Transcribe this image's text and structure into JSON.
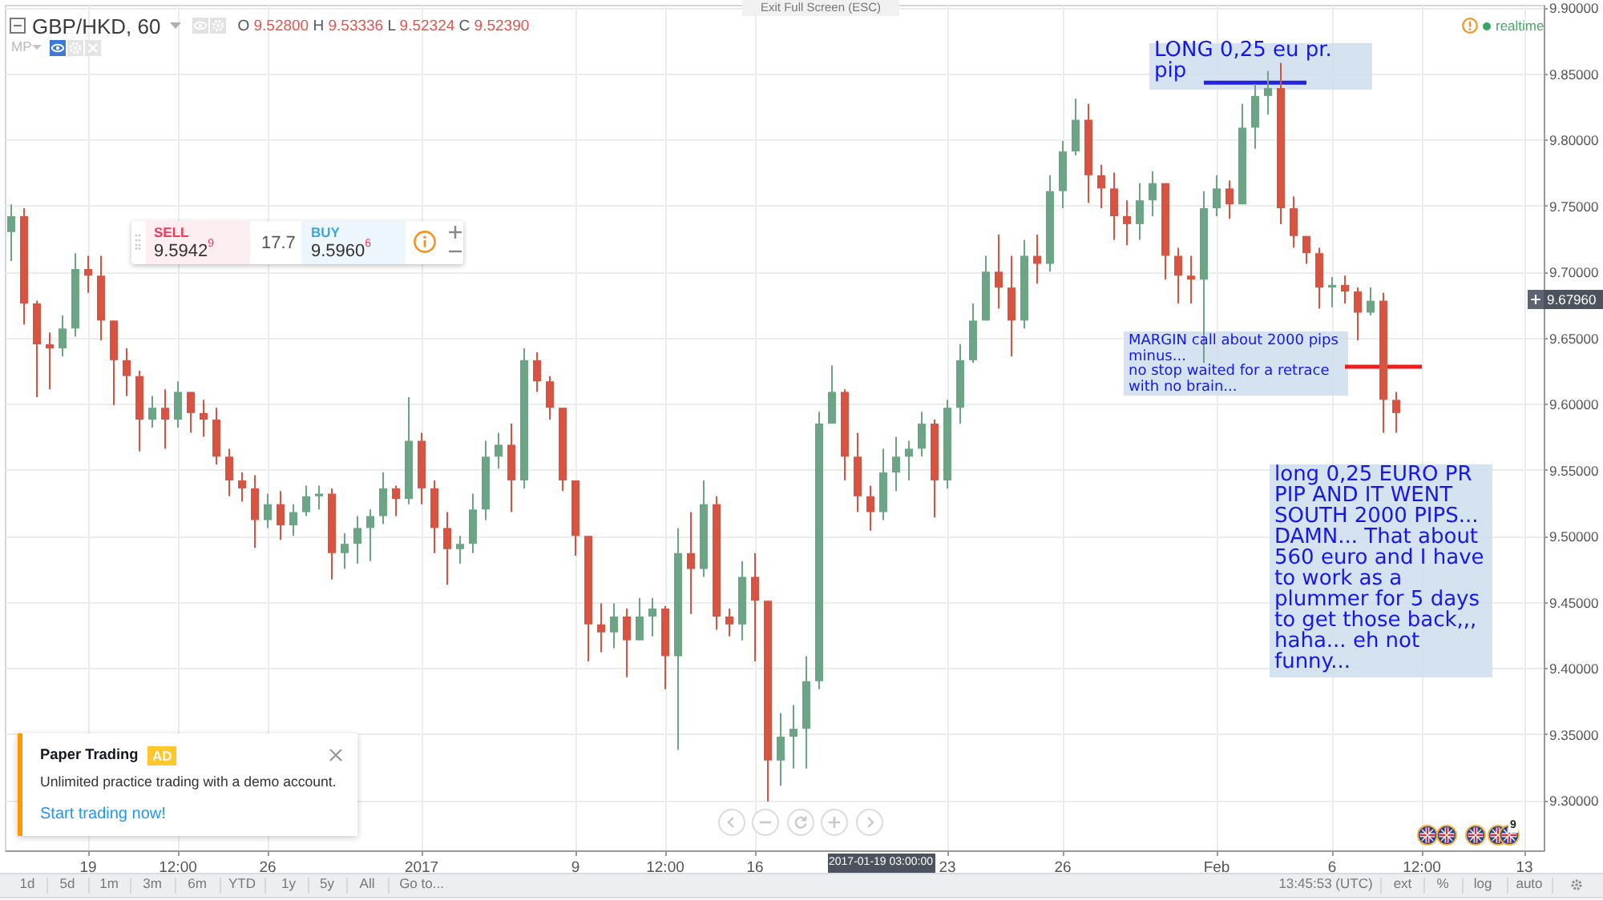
{
  "chart_data": {
    "type": "candlestick",
    "title": "GBP/HKD, 60",
    "subtitle": "O 9.52800 H 9.53336 L 9.52324 C 9.52390",
    "categories": [
      null,
      null,
      null,
      null,
      null,
      null,
      "19",
      null,
      null,
      null,
      null,
      null,
      null,
      "12:00",
      null,
      null,
      null,
      null,
      null,
      null,
      "26",
      null,
      null,
      null,
      null,
      null,
      null,
      null,
      null,
      null,
      null,
      null,
      "2017",
      null,
      null,
      null,
      null,
      null,
      null,
      null,
      null,
      null,
      null,
      null,
      "9",
      null,
      null,
      null,
      null,
      null,
      null,
      "12:00",
      null,
      null,
      null,
      null,
      null,
      null,
      "16",
      null,
      null,
      null,
      null,
      null,
      null,
      null,
      null,
      null,
      null,
      null,
      null,
      null,
      null,
      "23",
      null,
      null,
      null,
      null,
      null,
      null,
      null,
      null,
      "26",
      null,
      null,
      null,
      null,
      null,
      null,
      null,
      null,
      null,
      null,
      null,
      "Feb",
      null,
      null,
      null,
      null,
      null,
      null,
      null,
      null,
      "6",
      null,
      null,
      null,
      null,
      null,
      null,
      "12:00",
      null,
      null,
      null,
      null,
      null,
      null,
      null,
      "13",
      null
    ],
    "ohlc": [
      [
        9.73,
        9.751,
        9.708,
        9.742
      ],
      [
        9.742,
        9.748,
        9.66,
        9.676
      ],
      [
        9.676,
        9.678,
        9.605,
        9.645
      ],
      [
        9.645,
        9.654,
        9.611,
        9.642
      ],
      [
        9.642,
        9.667,
        9.636,
        9.657
      ],
      [
        9.657,
        9.714,
        9.651,
        9.702
      ],
      [
        9.702,
        9.712,
        9.684,
        9.697
      ],
      [
        9.697,
        9.712,
        9.648,
        9.663
      ],
      [
        9.663,
        9.663,
        9.599,
        9.633
      ],
      [
        9.633,
        9.642,
        9.606,
        9.621
      ],
      [
        9.621,
        9.625,
        9.564,
        9.588
      ],
      [
        9.588,
        9.606,
        9.582,
        9.597
      ],
      [
        9.597,
        9.611,
        9.566,
        9.588
      ],
      [
        9.588,
        9.617,
        9.582,
        9.609
      ],
      [
        9.609,
        9.609,
        9.578,
        9.593
      ],
      [
        9.593,
        9.603,
        9.575,
        9.588
      ],
      [
        9.588,
        9.597,
        9.554,
        9.56
      ],
      [
        9.56,
        9.566,
        9.53,
        9.542
      ],
      [
        9.542,
        9.548,
        9.526,
        9.536
      ],
      [
        9.536,
        9.546,
        9.491,
        9.512
      ],
      [
        9.512,
        9.532,
        9.506,
        9.524
      ],
      [
        9.524,
        9.534,
        9.497,
        9.508
      ],
      [
        9.508,
        9.524,
        9.5,
        9.518
      ],
      [
        9.518,
        9.538,
        9.515,
        9.53
      ],
      [
        9.53,
        9.538,
        9.52,
        9.532
      ],
      [
        9.532,
        9.536,
        9.467,
        9.487
      ],
      [
        9.487,
        9.502,
        9.475,
        9.494
      ],
      [
        9.494,
        9.515,
        9.479,
        9.506
      ],
      [
        9.506,
        9.52,
        9.481,
        9.515
      ],
      [
        9.515,
        9.548,
        9.509,
        9.536
      ],
      [
        9.536,
        9.538,
        9.515,
        9.528
      ],
      [
        9.528,
        9.605,
        9.524,
        9.572
      ],
      [
        9.572,
        9.578,
        9.524,
        9.536
      ],
      [
        9.536,
        9.542,
        9.487,
        9.506
      ],
      [
        9.506,
        9.518,
        9.463,
        9.49
      ],
      [
        9.49,
        9.5,
        9.479,
        9.494
      ],
      [
        9.494,
        9.532,
        9.487,
        9.52
      ],
      [
        9.52,
        9.572,
        9.512,
        9.56
      ],
      [
        9.56,
        9.578,
        9.551,
        9.569
      ],
      [
        9.569,
        9.585,
        9.518,
        9.542
      ],
      [
        9.542,
        9.642,
        9.536,
        9.633
      ],
      [
        9.633,
        9.639,
        9.609,
        9.617
      ],
      [
        9.617,
        9.621,
        9.588,
        9.597
      ],
      [
        9.597,
        9.597,
        9.534,
        9.542
      ],
      [
        9.542,
        9.542,
        9.485,
        9.5
      ],
      [
        9.5,
        9.5,
        9.405,
        9.433
      ],
      [
        9.433,
        9.449,
        9.412,
        9.427
      ],
      [
        9.427,
        9.449,
        9.415,
        9.439
      ],
      [
        9.439,
        9.445,
        9.393,
        9.421
      ],
      [
        9.421,
        9.453,
        9.421,
        9.439
      ],
      [
        9.439,
        9.453,
        9.424,
        9.445
      ],
      [
        9.445,
        9.447,
        9.384,
        9.409
      ],
      [
        9.409,
        9.506,
        9.338,
        9.487
      ],
      [
        9.487,
        9.518,
        9.441,
        9.475
      ],
      [
        9.475,
        9.542,
        9.469,
        9.524
      ],
      [
        9.524,
        9.53,
        9.429,
        9.439
      ],
      [
        9.439,
        9.445,
        9.424,
        9.433
      ],
      [
        9.433,
        9.481,
        9.421,
        9.469
      ],
      [
        9.469,
        9.487,
        9.405,
        9.451
      ],
      [
        9.451,
        9.451,
        9.299,
        9.33
      ],
      [
        9.33,
        9.366,
        9.311,
        9.348
      ],
      [
        9.348,
        9.372,
        9.324,
        9.354
      ],
      [
        9.354,
        9.409,
        9.324,
        9.39
      ],
      [
        9.39,
        9.594,
        9.384,
        9.585
      ],
      [
        9.585,
        9.629,
        9.585,
        9.609
      ],
      [
        9.609,
        9.611,
        9.542,
        9.56
      ],
      [
        9.56,
        9.578,
        9.518,
        9.53
      ],
      [
        9.53,
        9.538,
        9.504,
        9.518
      ],
      [
        9.518,
        9.566,
        9.512,
        9.548
      ],
      [
        9.548,
        9.575,
        9.534,
        9.56
      ],
      [
        9.56,
        9.572,
        9.542,
        9.566
      ],
      [
        9.566,
        9.594,
        9.56,
        9.585
      ],
      [
        9.585,
        9.588,
        9.514,
        9.542
      ],
      [
        9.542,
        9.603,
        9.536,
        9.597
      ],
      [
        9.597,
        9.645,
        9.585,
        9.633
      ],
      [
        9.633,
        9.676,
        9.631,
        9.663
      ],
      [
        9.663,
        9.712,
        9.663,
        9.7
      ],
      [
        9.7,
        9.728,
        9.672,
        9.688
      ],
      [
        9.688,
        9.712,
        9.636,
        9.663
      ],
      [
        9.663,
        9.724,
        9.657,
        9.712
      ],
      [
        9.712,
        9.728,
        9.691,
        9.706
      ],
      [
        9.706,
        9.773,
        9.7,
        9.761
      ],
      [
        9.761,
        9.799,
        9.748,
        9.791
      ],
      [
        9.791,
        9.831,
        9.788,
        9.815
      ],
      [
        9.815,
        9.827,
        9.752,
        9.773
      ],
      [
        9.773,
        9.781,
        9.748,
        9.763
      ],
      [
        9.763,
        9.775,
        9.724,
        9.742
      ],
      [
        9.742,
        9.754,
        9.72,
        9.736
      ],
      [
        9.736,
        9.767,
        9.724,
        9.754
      ],
      [
        9.754,
        9.776,
        9.742,
        9.767
      ],
      [
        9.767,
        9.767,
        9.694,
        9.712
      ],
      [
        9.712,
        9.718,
        9.676,
        9.697
      ],
      [
        9.697,
        9.712,
        9.676,
        9.694
      ],
      [
        9.694,
        9.761,
        9.631,
        9.748
      ],
      [
        9.748,
        9.773,
        9.742,
        9.763
      ],
      [
        9.763,
        9.769,
        9.74,
        9.751
      ],
      [
        9.751,
        9.827,
        9.751,
        9.809
      ],
      [
        9.809,
        9.842,
        9.793,
        9.833
      ],
      [
        9.833,
        9.852,
        9.819,
        9.839
      ],
      [
        9.839,
        9.858,
        9.736,
        9.748
      ],
      [
        9.748,
        9.757,
        9.718,
        9.727
      ],
      [
        9.727,
        9.727,
        9.706,
        9.714
      ],
      [
        9.714,
        9.718,
        9.672,
        9.688
      ],
      [
        9.688,
        9.696,
        9.673,
        9.69
      ],
      [
        9.69,
        9.697,
        9.676,
        9.685
      ],
      [
        9.685,
        9.688,
        9.648,
        9.669
      ],
      [
        9.669,
        9.688,
        9.667,
        9.678
      ],
      [
        9.678,
        9.684,
        9.578,
        9.603
      ],
      [
        9.603,
        9.609,
        9.578,
        9.593
      ],
      null,
      null,
      null,
      null,
      null,
      null,
      null,
      null,
      null,
      null,
      null
    ],
    "colors": [
      "#6ba583",
      "#d75442",
      "#d75442",
      "#d75442",
      "#6ba583",
      "#6ba583",
      "#d75442",
      "#d75442",
      "#d75442",
      "#d75442",
      "#d75442",
      "#6ba583",
      "#d75442",
      "#6ba583",
      "#d75442",
      "#d75442",
      "#d75442",
      "#d75442",
      "#d75442",
      "#d75442",
      "#6ba583",
      "#d75442",
      "#6ba583",
      "#6ba583",
      "#6ba583",
      "#d75442",
      "#6ba583",
      "#6ba583",
      "#6ba583",
      "#6ba583",
      "#d75442",
      "#6ba583",
      "#d75442",
      "#d75442",
      "#d75442",
      "#6ba583",
      "#6ba583",
      "#6ba583",
      "#6ba583",
      "#d75442",
      "#6ba583",
      "#d75442",
      "#d75442",
      "#d75442",
      "#d75442",
      "#d75442",
      "#d75442",
      "#6ba583",
      "#d75442",
      "#6ba583",
      "#6ba583",
      "#d75442",
      "#6ba583",
      "#d75442",
      "#6ba583",
      "#d75442",
      "#d75442",
      "#6ba583",
      "#d75442",
      "#d75442",
      "#6ba583",
      "#6ba583",
      "#6ba583",
      "#6ba583",
      "#6ba583",
      "#d75442",
      "#d75442",
      "#d75442",
      "#6ba583",
      "#6ba583",
      "#6ba583",
      "#6ba583",
      "#d75442",
      "#6ba583",
      "#6ba583",
      "#6ba583",
      "#6ba583",
      "#d75442",
      "#d75442",
      "#6ba583",
      "#d75442",
      "#6ba583",
      "#6ba583",
      "#6ba583",
      "#d75442",
      "#d75442",
      "#d75442",
      "#d75442",
      "#6ba583",
      "#6ba583",
      "#d75442",
      "#d75442",
      "#d75442",
      "#6ba583",
      "#6ba583",
      "#d75442",
      "#6ba583",
      "#6ba583",
      "#6ba583",
      "#d75442",
      "#d75442",
      "#d75442",
      "#d75442",
      "#6ba583",
      "#d75442",
      "#d75442",
      "#6ba583",
      "#d75442",
      "#d75442",
      null,
      null,
      null,
      null,
      null,
      null,
      null,
      null,
      null,
      null,
      null
    ],
    "series": [
      {
        "type": "line",
        "color": "#2424e0",
        "values": [
          null,
          null,
          null,
          null,
          null,
          null,
          null,
          null,
          null,
          null,
          null,
          null,
          null,
          null,
          null,
          null,
          null,
          null,
          null,
          null,
          null,
          null,
          null,
          null,
          null,
          null,
          null,
          null,
          null,
          null,
          null,
          null,
          null,
          null,
          null,
          null,
          null,
          null,
          null,
          null,
          null,
          null,
          null,
          null,
          null,
          null,
          null,
          null,
          null,
          null,
          null,
          null,
          null,
          null,
          null,
          null,
          null,
          null,
          null,
          null,
          null,
          null,
          null,
          null,
          null,
          null,
          null,
          null,
          null,
          null,
          null,
          null,
          null,
          null,
          null,
          null,
          null,
          null,
          null,
          null,
          null,
          null,
          null,
          null,
          null,
          null,
          null,
          null,
          null,
          null,
          null,
          null,
          null,
          9.843,
          9.843,
          9.843,
          9.843,
          9.843,
          9.843,
          9.843,
          9.843,
          9.843,
          null,
          null,
          null,
          null,
          null,
          null,
          null,
          null,
          null,
          null,
          null,
          null,
          null,
          null,
          null,
          null,
          null,
          null
        ]
      },
      {
        "type": "line",
        "color": "#f01c1c",
        "values": [
          null,
          null,
          null,
          null,
          null,
          null,
          null,
          null,
          null,
          null,
          null,
          null,
          null,
          null,
          null,
          null,
          null,
          null,
          null,
          null,
          null,
          null,
          null,
          null,
          null,
          null,
          null,
          null,
          null,
          null,
          null,
          null,
          null,
          null,
          null,
          null,
          null,
          null,
          null,
          null,
          null,
          null,
          null,
          null,
          null,
          null,
          null,
          null,
          null,
          null,
          null,
          null,
          null,
          null,
          null,
          null,
          null,
          null,
          null,
          null,
          null,
          null,
          null,
          null,
          null,
          null,
          null,
          null,
          null,
          null,
          null,
          null,
          null,
          null,
          null,
          null,
          null,
          null,
          null,
          null,
          null,
          null,
          null,
          null,
          null,
          null,
          null,
          null,
          null,
          null,
          null,
          null,
          null,
          null,
          null,
          null,
          null,
          null,
          null,
          null,
          null,
          null,
          null,
          null,
          9.628,
          9.628,
          9.628,
          9.628,
          9.628,
          9.628,
          9.628,
          null,
          null,
          null,
          null,
          null,
          null,
          null,
          null,
          null
        ]
      }
    ],
    "ylim": [
      9.262,
      9.902
    ],
    "yticks": [
      {
        "value": 9.3,
        "label": "9.30000"
      },
      {
        "value": 9.35,
        "label": "9.35000"
      },
      {
        "value": 9.4,
        "label": "9.40000"
      },
      {
        "value": 9.45,
        "label": "9.45000"
      },
      {
        "value": 9.5,
        "label": "9.50000"
      },
      {
        "value": 9.55,
        "label": "9.55000"
      },
      {
        "value": 9.6,
        "label": "9.60000"
      },
      {
        "value": 9.65,
        "label": "9.65000"
      },
      {
        "value": 9.7,
        "label": "9.70000"
      },
      {
        "value": 9.75,
        "label": "9.75000"
      },
      {
        "value": 9.8,
        "label": "9.80000"
      },
      {
        "value": 9.85,
        "label": "9.85000"
      },
      {
        "value": 9.9,
        "label": "9.90000"
      }
    ],
    "grid": true,
    "annotations": [
      "Exit Full Screen (ESC)",
      "MP",
      "realtime",
      "SELL",
      "9.5942$^{9}$",
      "17.7",
      "BUY",
      "9.5960$^{6}$",
      "Paper Trading",
      "AD",
      "Unlimited practice trading with a demo account.",
      "Start trading now!",
      "LONG 0,25 eu pr. pip",
      "MARGIN call about 2000 pips minus...\nno stop waited for a retrace with no brain...",
      "long 0,25 EURO PR PIP AND IT WENT SOUTH 2000 PIPS... DAMN... That about 560 euro and I have to work as a plummer for 5 days to get those back,,, haha... eh not funny...",
      "1d",
      "5d",
      "1m",
      "3m",
      "6m",
      "YTD",
      "1y",
      "5y",
      "All",
      "Go to...",
      "13:45:53 (UTC)",
      "ext",
      "%",
      "log",
      "auto",
      "9",
      "2017-01-19 03:00:00",
      "9.67960"
    ]
  }
}
